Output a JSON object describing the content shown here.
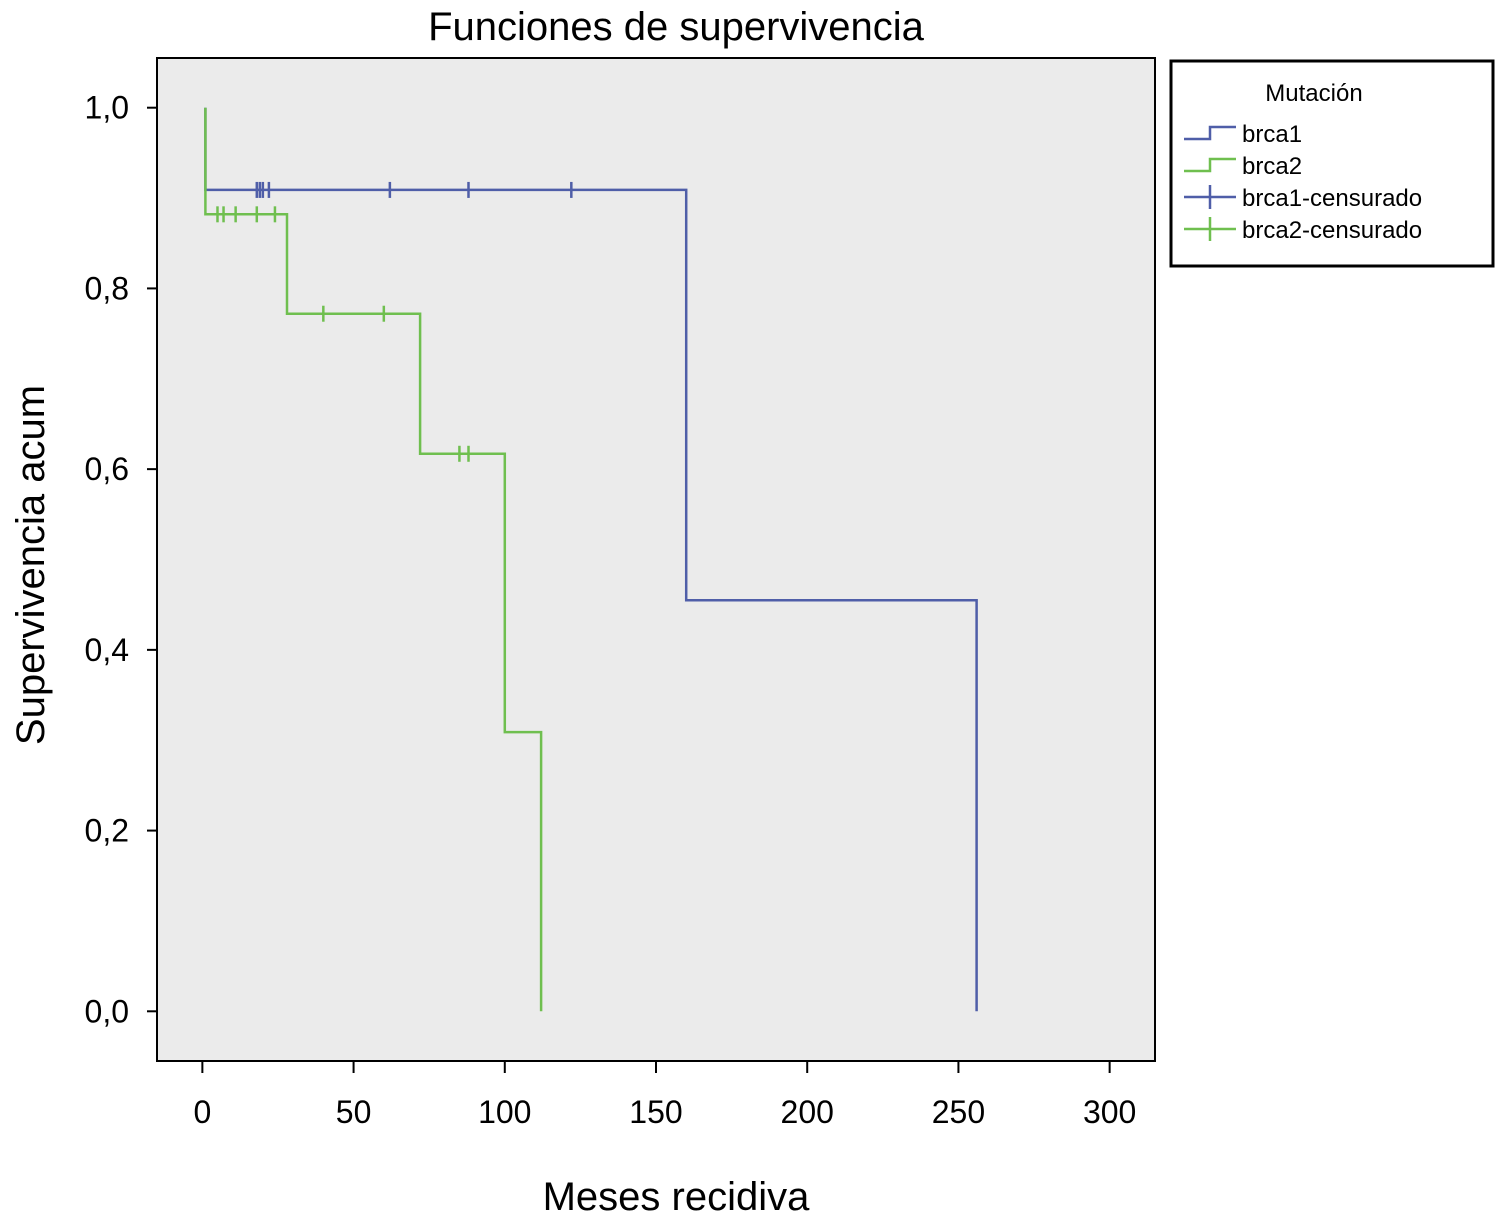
{
  "chart_data": {
    "type": "line",
    "title": "Funciones de supervivencia",
    "xlabel": "Meses recidiva",
    "ylabel": "Supervivencia acum",
    "xlim": [
      -15,
      315
    ],
    "ylim": [
      -0.055,
      1.055
    ],
    "x_ticks": [
      0,
      50,
      100,
      150,
      200,
      250,
      300
    ],
    "x_tick_labels": [
      "0",
      "50",
      "100",
      "150",
      "200",
      "250",
      "300"
    ],
    "y_ticks": [
      0.0,
      0.2,
      0.4,
      0.6,
      0.8,
      1.0
    ],
    "y_tick_labels": [
      "0,0",
      "0,2",
      "0,4",
      "0,6",
      "0,8",
      "1,0"
    ],
    "grid": false,
    "legend": {
      "title": "Mutación",
      "placement": "outside-top-right",
      "entries": [
        {
          "label": "brca1",
          "kind": "step",
          "color": "#4f5ea8"
        },
        {
          "label": "brca2",
          "kind": "step",
          "color": "#6fbf4f"
        },
        {
          "label": "brca1-censurado",
          "kind": "censor",
          "color": "#4f5ea8"
        },
        {
          "label": "brca2-censurado",
          "kind": "censor",
          "color": "#6fbf4f"
        }
      ]
    },
    "series": [
      {
        "name": "brca1",
        "color": "#4f5ea8",
        "steps": [
          [
            1,
            1.0
          ],
          [
            1,
            0.909
          ],
          [
            160,
            0.909
          ],
          [
            160,
            0.455
          ],
          [
            256,
            0.455
          ],
          [
            256,
            0.0
          ]
        ],
        "censored": [
          [
            18,
            0.909
          ],
          [
            19,
            0.909
          ],
          [
            20,
            0.909
          ],
          [
            22,
            0.909
          ],
          [
            62,
            0.909
          ],
          [
            88,
            0.909
          ],
          [
            122,
            0.909
          ]
        ]
      },
      {
        "name": "brca2",
        "color": "#6fbf4f",
        "steps": [
          [
            1,
            1.0
          ],
          [
            1,
            0.882
          ],
          [
            28,
            0.882
          ],
          [
            28,
            0.772
          ],
          [
            72,
            0.772
          ],
          [
            72,
            0.617
          ],
          [
            100,
            0.617
          ],
          [
            100,
            0.309
          ],
          [
            112,
            0.309
          ],
          [
            112,
            0.0
          ]
        ],
        "censored": [
          [
            5,
            0.882
          ],
          [
            7,
            0.882
          ],
          [
            11,
            0.882
          ],
          [
            18,
            0.882
          ],
          [
            24,
            0.882
          ],
          [
            40,
            0.772
          ],
          [
            60,
            0.772
          ],
          [
            85,
            0.617
          ],
          [
            88,
            0.617
          ]
        ]
      }
    ]
  }
}
